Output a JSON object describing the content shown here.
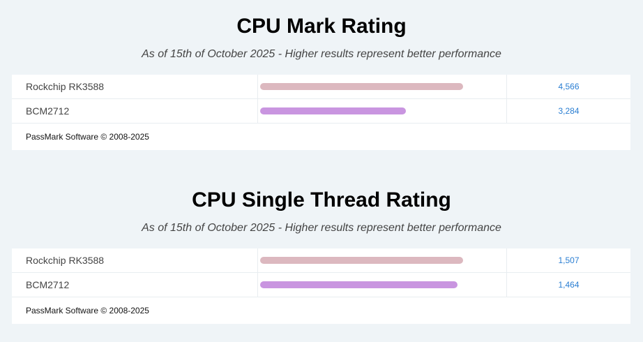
{
  "chart_data": [
    {
      "type": "bar",
      "title": "CPU Mark Rating",
      "subtitle": "As of 15th of October 2025 - Higher results represent better performance",
      "categories": [
        "Rockchip RK3588",
        "BCM2712"
      ],
      "values": [
        4566,
        3284
      ],
      "value_labels": [
        "4,566",
        "3,284"
      ],
      "colors": [
        "#dcb8bf",
        "#c995e0"
      ],
      "footer": "PassMark Software © 2008-2025"
    },
    {
      "type": "bar",
      "title": "CPU Single Thread Rating",
      "subtitle": "As of 15th of October 2025 - Higher results represent better performance",
      "categories": [
        "Rockchip RK3588",
        "BCM2712"
      ],
      "values": [
        1507,
        1464
      ],
      "value_labels": [
        "1,507",
        "1,464"
      ],
      "colors": [
        "#dcb8bf",
        "#c995e0"
      ],
      "footer": "PassMark Software © 2008-2025"
    }
  ]
}
